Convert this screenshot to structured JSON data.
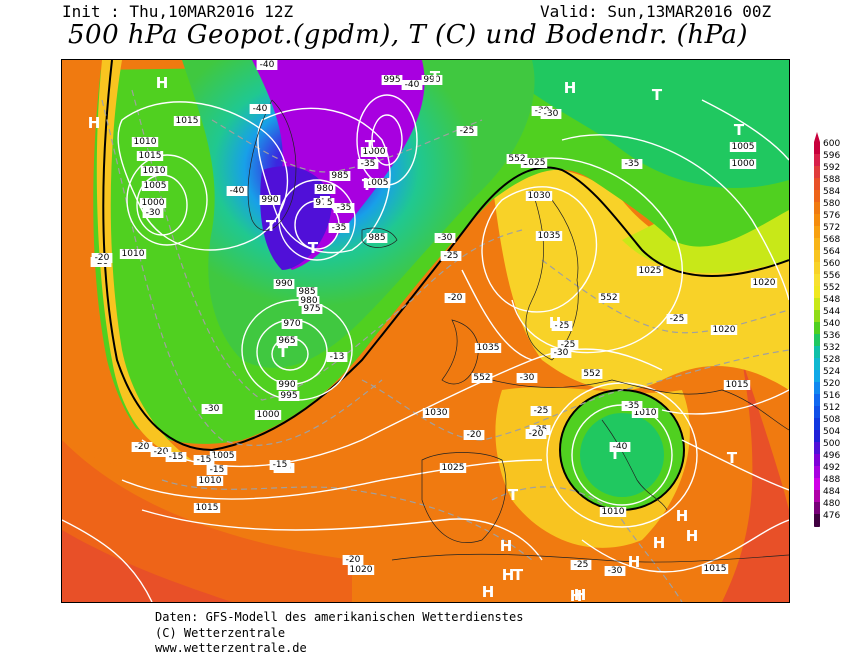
{
  "header": {
    "init": "Init : Thu,10MAR2016 12Z",
    "valid": "Valid: Sun,13MAR2016 00Z",
    "title": "500 hPa Geopot.(gpdm), T (C) und Bodendr. (hPa)"
  },
  "legend": {
    "labels": [
      "600",
      "596",
      "592",
      "588",
      "584",
      "580",
      "576",
      "572",
      "568",
      "564",
      "560",
      "556",
      "552",
      "548",
      "544",
      "540",
      "536",
      "532",
      "528",
      "524",
      "520",
      "516",
      "512",
      "508",
      "504",
      "500",
      "496",
      "492",
      "488",
      "484",
      "480",
      "476"
    ],
    "colors": [
      "#c8003c",
      "#d8204a",
      "#e03c3c",
      "#e85028",
      "#ee6418",
      "#f07a10",
      "#f58c0c",
      "#f8a010",
      "#f8b418",
      "#f8c420",
      "#f8d228",
      "#f8e030",
      "#f0e820",
      "#c8e818",
      "#90dc18",
      "#50d020",
      "#20c860",
      "#10c0a8",
      "#10b8d0",
      "#10a8e8",
      "#1088f0",
      "#1068f0",
      "#1050e8",
      "#1038e0",
      "#2020d8",
      "#5010d8",
      "#8000d8",
      "#a800e0",
      "#d000e8",
      "#b000a8",
      "#780078",
      "#400040"
    ]
  },
  "pressure_labels": [
    "1015",
    "995",
    "990",
    "1000",
    "1005",
    "1010",
    "1015",
    "1010",
    "1005",
    "1000",
    "985",
    "980",
    "975",
    "990",
    "985",
    "1025",
    "1030",
    "1035",
    "1035",
    "1025",
    "1020",
    "1020",
    "1015",
    "1010",
    "1005",
    "1000",
    "990",
    "985",
    "980",
    "975",
    "970",
    "965",
    "990",
    "995",
    "1000",
    "1005",
    "1010",
    "1015",
    "1030",
    "1025",
    "1010",
    "1015",
    "1020",
    "1010",
    "552",
    "552",
    "552",
    "552"
  ],
  "temp_labels": [
    "-40",
    "-40",
    "-40",
    "-40",
    "-30",
    "-30",
    "-35",
    "-35",
    "-35",
    "-35",
    "-30",
    "-30",
    "-30",
    "-25",
    "-25",
    "-25",
    "-25",
    "-25",
    "-25",
    "-20",
    "-20",
    "-20",
    "-20",
    "-20",
    "-15",
    "-15",
    "-15",
    "-15",
    "-15",
    "-13",
    "-20",
    "-30",
    "-20",
    "-25",
    "-20",
    "-25",
    "-30",
    "-35",
    "-30",
    "-40"
  ],
  "pressure_centers": [
    "H",
    "H",
    "H",
    "H",
    "H",
    "H",
    "H",
    "H",
    "H",
    "H",
    "H",
    "H",
    "H",
    "T",
    "T",
    "T",
    "T",
    "T",
    "T",
    "T",
    "T",
    "T",
    "T",
    "T",
    "T",
    "T"
  ],
  "footer": {
    "line1": "Daten: GFS-Modell des amerikanischen Wetterdienstes",
    "line2": "(C) Wetterzentrale",
    "line3": "www.wetterzentrale.de"
  }
}
